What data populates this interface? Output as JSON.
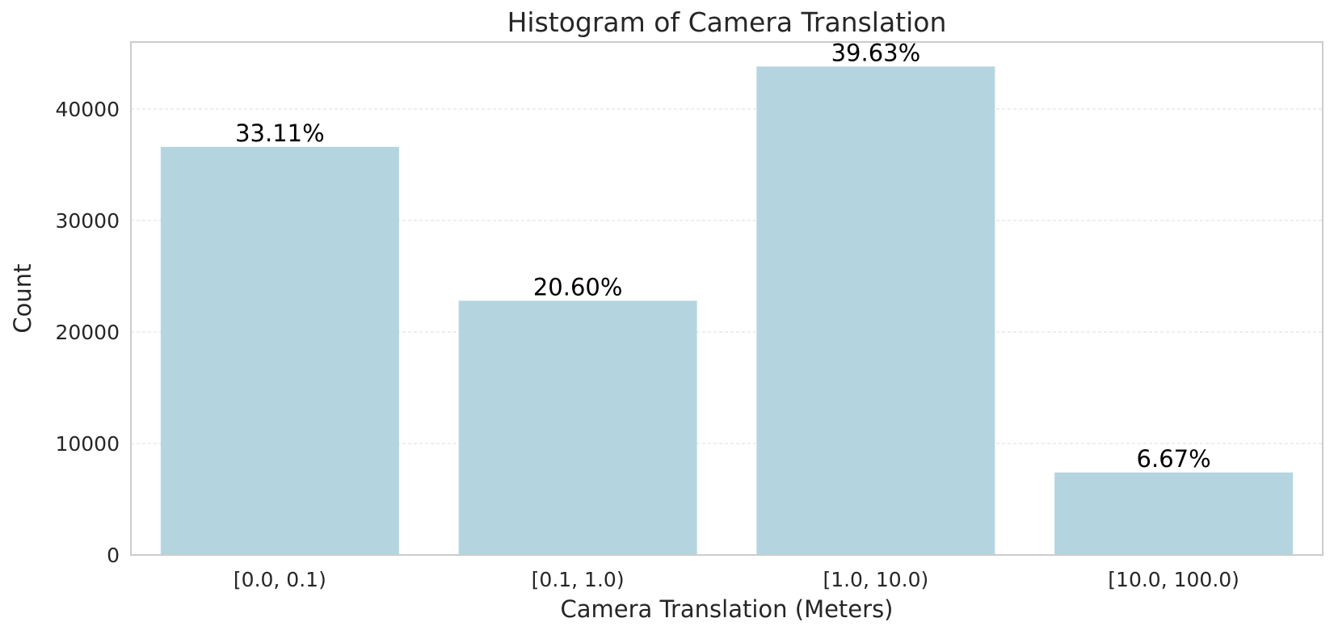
{
  "colors": {
    "bar_fill": "#b4d5df",
    "frame": "#cccccc",
    "grid": "#dddddd",
    "text": "#262626"
  },
  "chart_data": {
    "type": "bar",
    "title": "Histogram of Camera Translation",
    "xlabel": "Camera Translation (Meters)",
    "ylabel": "Count",
    "categories": [
      "[0.0, 0.1)",
      "[0.1, 1.0)",
      "[1.0, 10.0)",
      "[10.0, 100.0)"
    ],
    "values": [
      36600,
      22800,
      43800,
      7400
    ],
    "data_labels": [
      "33.11%",
      "20.60%",
      "39.63%",
      "6.67%"
    ],
    "ylim": [
      0,
      46000
    ],
    "yticks": [
      0,
      10000,
      20000,
      30000,
      40000
    ],
    "ytick_labels": [
      "0",
      "10000",
      "20000",
      "30000",
      "40000"
    ],
    "grid": true,
    "grid_axis": "y",
    "legend": "none"
  }
}
